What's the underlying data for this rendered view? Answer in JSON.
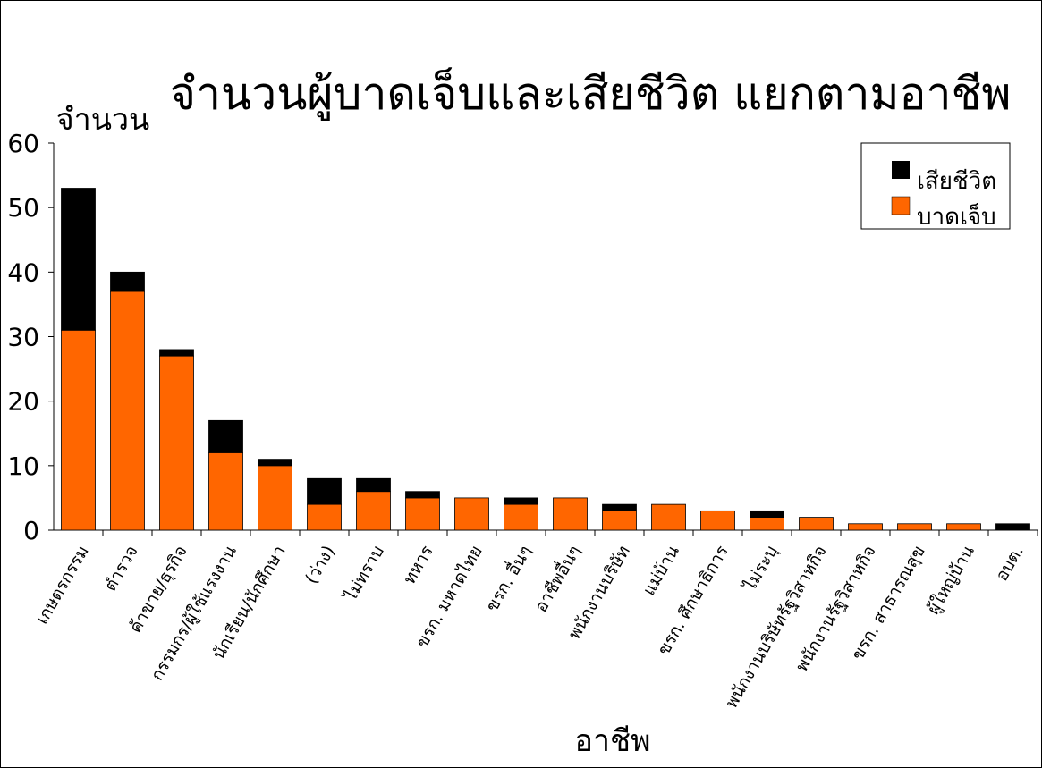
{
  "chart_data": {
    "type": "bar",
    "stacked": true,
    "title": "จำนวนผู้บาดเจ็บและเสียชีวิต แยกตามอาชีพ",
    "ylabel": "จำนวน",
    "xlabel": "อาชีพ",
    "ylim": [
      0,
      60
    ],
    "yticks": [
      0,
      10,
      20,
      30,
      40,
      50,
      60
    ],
    "legend_position": "top-right",
    "grid": false,
    "categories": [
      "เกษตรกรรม",
      "ตำรวจ",
      "ค้าขาย/ธุรกิจ",
      "กรรมกร/ผู้ใช้แรงงาน",
      "นักเรียน/นักศึกษา",
      "(ว่าง)",
      "ไม่ทราบ",
      "ทหาร",
      "ขรก. มหาดไทย",
      "ขรก. อื่นๆ",
      "อาชีพอื่นๆ",
      "พนักงานบริษัท",
      "แม่บ้าน",
      "ขรก. ศึกษาธิการ",
      "ไม่ระบุ",
      "พนักงานบริษัทรัฐวิสาหกิจ",
      "พนักงานรัฐวิสาหกิจ",
      "ขรก. สาธารณสุข",
      "ผู้ใหญ่บ้าน",
      "อบต."
    ],
    "series": [
      {
        "name": "บาดเจ็บ",
        "color": "#ff6600",
        "values": [
          31,
          37,
          27,
          12,
          10,
          4,
          6,
          5,
          5,
          4,
          5,
          3,
          4,
          3,
          2,
          2,
          1,
          1,
          1,
          0
        ]
      },
      {
        "name": "เสียชีวิต",
        "color": "#000000",
        "values": [
          22,
          3,
          1,
          5,
          1,
          4,
          2,
          1,
          0,
          1,
          0,
          1,
          0,
          0,
          1,
          0,
          0,
          0,
          0,
          1
        ]
      }
    ]
  }
}
